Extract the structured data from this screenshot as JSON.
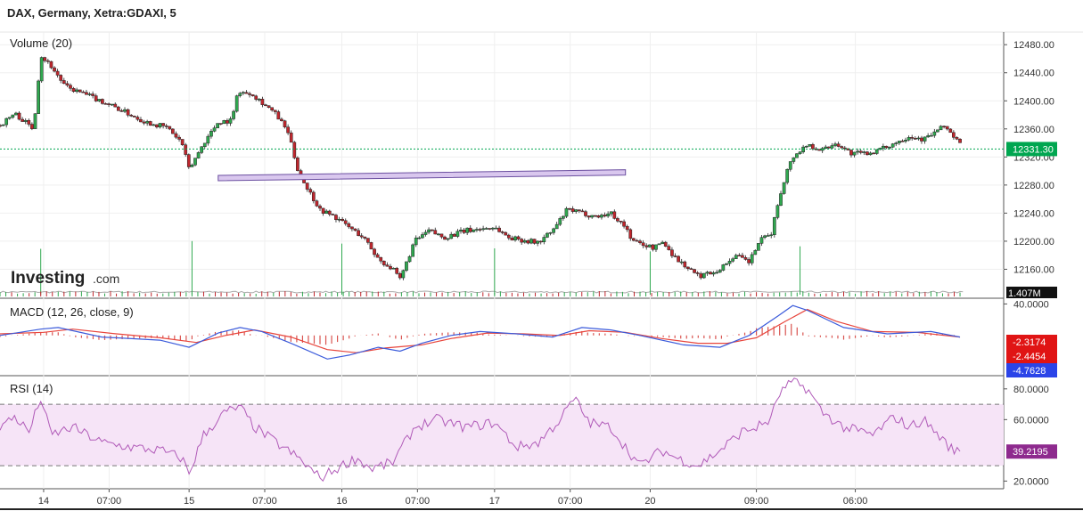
{
  "header": {
    "title": "DAX, Germany, Xetra:GDAXI, 5"
  },
  "logo": {
    "main": "Investing",
    "suffix": ".com"
  },
  "colors": {
    "up": "#2fa84f",
    "down": "#c0262d",
    "macd_line": "#3b5bdb",
    "signal_line": "#e8453c",
    "hist": "#d9534f",
    "rsi_line": "#b05ab8",
    "rsi_band": "#f6e4f7",
    "price_line": "#00a650",
    "trendline_fill": "#d9c7ee",
    "trendline_stroke": "#6b4fa0",
    "volume_line": "#aaaaaa"
  },
  "chart_data": [
    {
      "type": "candlestick",
      "pane": "price",
      "label": "Volume (20)",
      "y_ticks": [
        "12480.00",
        "12440.00",
        "12400.00",
        "12360.00",
        "12320.00",
        "12280.00",
        "12240.00",
        "12200.00",
        "12160.00"
      ],
      "ylim": [
        12120,
        12498
      ],
      "last_price": 12331.3,
      "last_price_label": "12331.30",
      "volume_label": "1.407M",
      "trendline": {
        "start": {
          "x": 1.5,
          "y": 12290
        },
        "end": {
          "x": 4.3,
          "y": 12298
        }
      },
      "close_path": [
        [
          0.0,
          12365
        ],
        [
          0.1,
          12382
        ],
        [
          0.16,
          12372
        ],
        [
          0.23,
          12360
        ],
        [
          0.28,
          12465
        ],
        [
          0.35,
          12450
        ],
        [
          0.45,
          12420
        ],
        [
          0.6,
          12408
        ],
        [
          0.75,
          12395
        ],
        [
          0.9,
          12380
        ],
        [
          1.0,
          12370
        ],
        [
          1.15,
          12362
        ],
        [
          1.25,
          12340
        ],
        [
          1.3,
          12302
        ],
        [
          1.4,
          12340
        ],
        [
          1.5,
          12370
        ],
        [
          1.6,
          12372
        ],
        [
          1.62,
          12410
        ],
        [
          1.72,
          12412
        ],
        [
          1.78,
          12402
        ],
        [
          1.9,
          12380
        ],
        [
          1.98,
          12355
        ],
        [
          2.05,
          12300
        ],
        [
          2.1,
          12280
        ],
        [
          2.2,
          12245
        ],
        [
          2.3,
          12235
        ],
        [
          2.4,
          12220
        ],
        [
          2.5,
          12205
        ],
        [
          2.6,
          12175
        ],
        [
          2.7,
          12160
        ],
        [
          2.75,
          12145
        ],
        [
          2.85,
          12200
        ],
        [
          2.95,
          12215
        ],
        [
          3.05,
          12205
        ],
        [
          3.2,
          12215
        ],
        [
          3.4,
          12220
        ],
        [
          3.5,
          12205
        ],
        [
          3.7,
          12198
        ],
        [
          3.8,
          12215
        ],
        [
          3.9,
          12245
        ],
        [
          4.0,
          12240
        ],
        [
          4.1,
          12235
        ],
        [
          4.2,
          12240
        ],
        [
          4.3,
          12220
        ],
        [
          4.35,
          12200
        ],
        [
          4.5,
          12190
        ],
        [
          4.55,
          12200
        ],
        [
          4.65,
          12175
        ],
        [
          4.8,
          12150
        ],
        [
          4.95,
          12160
        ],
        [
          5.05,
          12180
        ],
        [
          5.15,
          12170
        ],
        [
          5.22,
          12200
        ],
        [
          5.3,
          12210
        ],
        [
          5.35,
          12255
        ],
        [
          5.4,
          12295
        ],
        [
          5.45,
          12320
        ],
        [
          5.55,
          12338
        ],
        [
          5.65,
          12330
        ],
        [
          5.75,
          12340
        ],
        [
          5.85,
          12325
        ],
        [
          5.95,
          12325
        ],
        [
          6.05,
          12330
        ],
        [
          6.15,
          12340
        ],
        [
          6.25,
          12350
        ],
        [
          6.35,
          12345
        ],
        [
          6.5,
          12365
        ],
        [
          6.55,
          12350
        ],
        [
          6.6,
          12338
        ]
      ]
    },
    {
      "type": "line",
      "pane": "macd",
      "label": "MACD (12, 26, close, 9)",
      "y_ticks": [
        "40.0000"
      ],
      "ylim": [
        -50,
        45
      ],
      "badges": [
        {
          "value": "-2.3174",
          "color": "#e01414"
        },
        {
          "value": "-2.4454",
          "color": "#e01414"
        },
        {
          "value": "-4.7628",
          "color": "#2b44e8"
        }
      ],
      "macd_path": [
        [
          0,
          0
        ],
        [
          0.28,
          8
        ],
        [
          0.4,
          10
        ],
        [
          0.7,
          -2
        ],
        [
          1.1,
          -6
        ],
        [
          1.3,
          -15
        ],
        [
          1.5,
          3
        ],
        [
          1.65,
          10
        ],
        [
          1.8,
          5
        ],
        [
          2.0,
          -10
        ],
        [
          2.25,
          -30
        ],
        [
          2.4,
          -25
        ],
        [
          2.6,
          -15
        ],
        [
          2.75,
          -20
        ],
        [
          2.9,
          -10
        ],
        [
          3.1,
          0
        ],
        [
          3.3,
          5
        ],
        [
          3.55,
          2
        ],
        [
          3.8,
          -2
        ],
        [
          4.0,
          10
        ],
        [
          4.2,
          7
        ],
        [
          4.4,
          0
        ],
        [
          4.7,
          -12
        ],
        [
          4.95,
          -15
        ],
        [
          5.15,
          0
        ],
        [
          5.35,
          25
        ],
        [
          5.45,
          38
        ],
        [
          5.55,
          32
        ],
        [
          5.8,
          10
        ],
        [
          6.1,
          2
        ],
        [
          6.4,
          5
        ],
        [
          6.6,
          -2
        ]
      ],
      "signal_path": [
        [
          0,
          2
        ],
        [
          0.3,
          4
        ],
        [
          0.5,
          8
        ],
        [
          0.8,
          2
        ],
        [
          1.1,
          -3
        ],
        [
          1.35,
          -9
        ],
        [
          1.55,
          0
        ],
        [
          1.75,
          7
        ],
        [
          2.0,
          -2
        ],
        [
          2.25,
          -18
        ],
        [
          2.45,
          -22
        ],
        [
          2.65,
          -16
        ],
        [
          2.9,
          -12
        ],
        [
          3.1,
          -4
        ],
        [
          3.35,
          3
        ],
        [
          3.6,
          2
        ],
        [
          3.85,
          0
        ],
        [
          4.05,
          6
        ],
        [
          4.3,
          4
        ],
        [
          4.55,
          -4
        ],
        [
          4.8,
          -10
        ],
        [
          5.0,
          -10
        ],
        [
          5.2,
          -3
        ],
        [
          5.4,
          18
        ],
        [
          5.55,
          33
        ],
        [
          5.75,
          18
        ],
        [
          6.0,
          5
        ],
        [
          6.3,
          4
        ],
        [
          6.6,
          -2
        ]
      ]
    },
    {
      "type": "line",
      "pane": "rsi",
      "label": "RSI (14)",
      "y_ticks": [
        "80.0000",
        "60.0000",
        "20.0000"
      ],
      "ylim": [
        15,
        88
      ],
      "band": [
        30,
        70
      ],
      "last_value_label": "39.2195",
      "rsi_path": [
        [
          0,
          55
        ],
        [
          0.1,
          62
        ],
        [
          0.2,
          52
        ],
        [
          0.28,
          74
        ],
        [
          0.35,
          50
        ],
        [
          0.5,
          55
        ],
        [
          0.7,
          45
        ],
        [
          0.9,
          42
        ],
        [
          1.1,
          40
        ],
        [
          1.25,
          35
        ],
        [
          1.3,
          25
        ],
        [
          1.4,
          50
        ],
        [
          1.55,
          65
        ],
        [
          1.65,
          68
        ],
        [
          1.75,
          55
        ],
        [
          1.9,
          45
        ],
        [
          2.05,
          35
        ],
        [
          2.2,
          22
        ],
        [
          2.35,
          30
        ],
        [
          2.45,
          35
        ],
        [
          2.55,
          28
        ],
        [
          2.7,
          32
        ],
        [
          2.85,
          55
        ],
        [
          3.0,
          60
        ],
        [
          3.2,
          55
        ],
        [
          3.4,
          58
        ],
        [
          3.55,
          42
        ],
        [
          3.7,
          45
        ],
        [
          3.85,
          60
        ],
        [
          3.95,
          74
        ],
        [
          4.05,
          58
        ],
        [
          4.2,
          55
        ],
        [
          4.3,
          42
        ],
        [
          4.4,
          30
        ],
        [
          4.55,
          40
        ],
        [
          4.65,
          35
        ],
        [
          4.8,
          30
        ],
        [
          4.95,
          40
        ],
        [
          5.1,
          52
        ],
        [
          5.2,
          55
        ],
        [
          5.3,
          60
        ],
        [
          5.35,
          76
        ],
        [
          5.45,
          85
        ],
        [
          5.55,
          80
        ],
        [
          5.65,
          65
        ],
        [
          5.8,
          55
        ],
        [
          6.0,
          50
        ],
        [
          6.15,
          62
        ],
        [
          6.25,
          55
        ],
        [
          6.35,
          60
        ],
        [
          6.45,
          50
        ],
        [
          6.55,
          40
        ],
        [
          6.6,
          39.2
        ]
      ]
    }
  ],
  "x_ticks": [
    {
      "x": 0.3,
      "label": "14"
    },
    {
      "x": 0.75,
      "label": "07:00"
    },
    {
      "x": 1.3,
      "label": "15"
    },
    {
      "x": 1.82,
      "label": "07:00"
    },
    {
      "x": 2.35,
      "label": "16"
    },
    {
      "x": 2.87,
      "label": "07:00"
    },
    {
      "x": 3.4,
      "label": "17"
    },
    {
      "x": 3.92,
      "label": "07:00"
    },
    {
      "x": 4.47,
      "label": "20"
    },
    {
      "x": 5.2,
      "label": "09:00"
    },
    {
      "x": 5.88,
      "label": "06:00"
    }
  ],
  "x_range": [
    0,
    6.9
  ],
  "volume_spikes": [
    0.28,
    1.32,
    2.35,
    3.4,
    4.47,
    5.5
  ]
}
